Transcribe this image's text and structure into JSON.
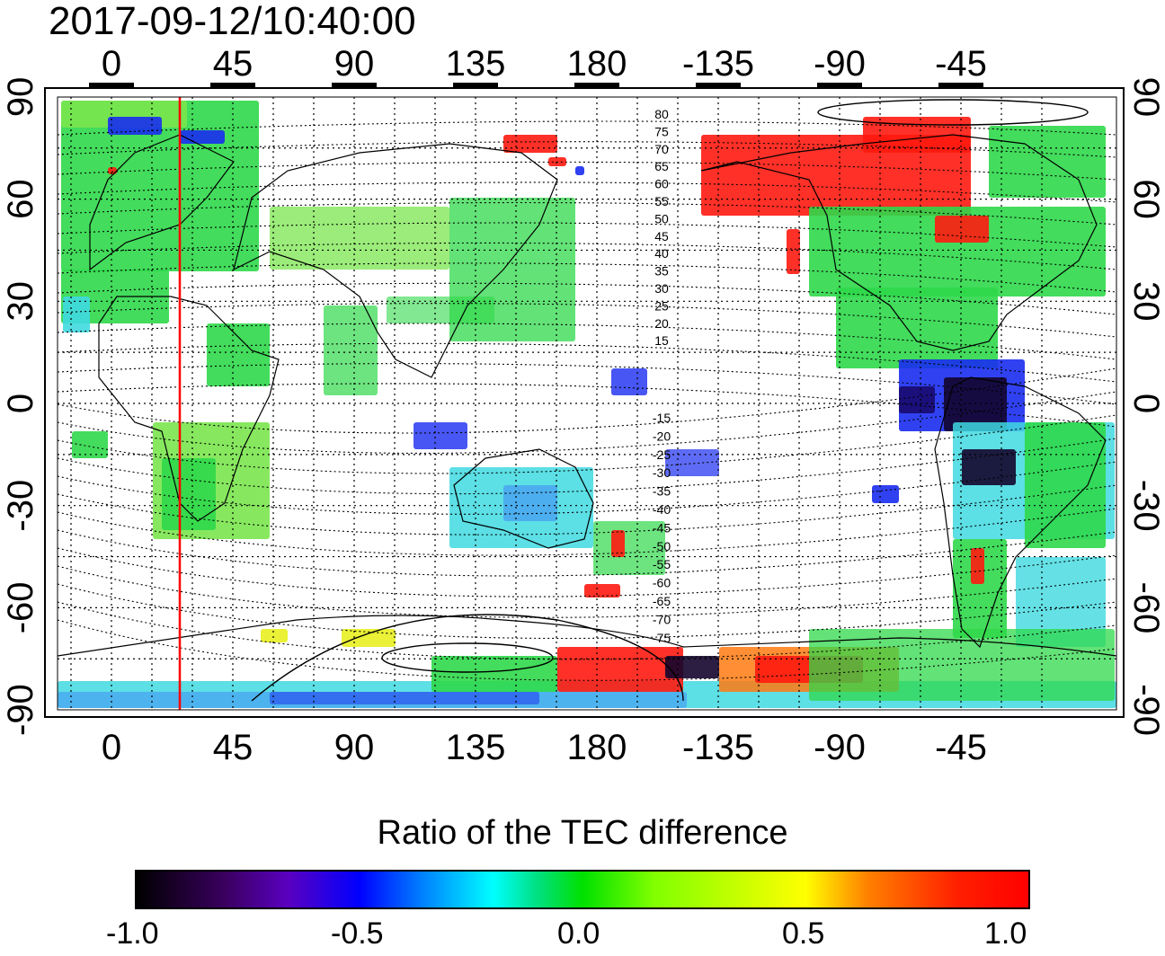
{
  "timestamp": "2017-09-12/10:40:00",
  "map": {
    "top_lon_labels": [
      "0",
      "45",
      "90",
      "135",
      "180",
      "-135",
      "-90",
      "-45"
    ],
    "bottom_lon_labels": [
      "0",
      "45",
      "90",
      "135",
      "180",
      "-135",
      "-90",
      "-45"
    ],
    "left_lat_labels": [
      "90",
      "60",
      "30",
      "0",
      "-30",
      "-60",
      "-90"
    ],
    "right_lat_labels": [
      "90",
      "60",
      "30",
      "0",
      "-30",
      "-60",
      "-90"
    ],
    "north_contour_labels": [
      "80",
      "75",
      "70",
      "65",
      "60",
      "55",
      "50",
      "45",
      "40",
      "35",
      "30",
      "25",
      "20",
      "15"
    ],
    "south_contour_labels": [
      "-15",
      "-20",
      "-25",
      "-30",
      "-35",
      "-40",
      "-45",
      "-50",
      "-55",
      "-60",
      "-65",
      "-70",
      "-75"
    ],
    "reference_meridian_color": "#ff0000"
  },
  "colorbar": {
    "title": "Ratio of the TEC difference",
    "tick_labels": [
      "-1.0",
      "-0.5",
      "0.0",
      "0.5",
      "1.0"
    ],
    "range": [
      -1.0,
      1.0
    ]
  }
}
